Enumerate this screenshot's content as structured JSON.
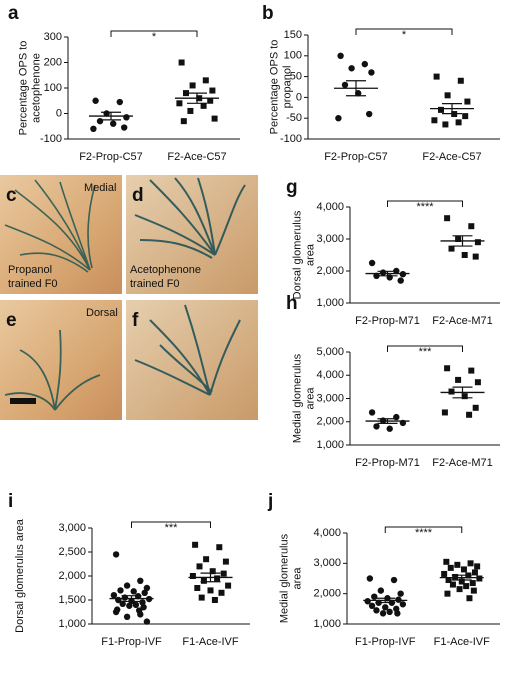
{
  "chart_data": [
    {
      "type": "dot",
      "letter": "a",
      "ylabel": [
        "Percentage OPS to",
        "acetophenone"
      ],
      "ylim": [
        -100,
        300
      ],
      "yticks": [
        -100,
        0,
        100,
        200,
        300
      ],
      "categories": [
        "F2-Prop-C57",
        "F2-Ace-C57"
      ],
      "markers": [
        "circle",
        "square"
      ],
      "annotation": "*",
      "groups": [
        {
          "values": [
            50,
            45,
            0,
            -15,
            -30,
            -40,
            -55,
            -60
          ],
          "mean": -10,
          "sem": 15
        },
        {
          "values": [
            200,
            130,
            110,
            90,
            80,
            60,
            50,
            40,
            30,
            10,
            -20,
            -30
          ],
          "mean": 60,
          "sem": 20
        }
      ]
    },
    {
      "type": "dot",
      "letter": "b",
      "ylabel": [
        "Percentage OPS to",
        "propanol"
      ],
      "ylim": [
        -100,
        150
      ],
      "yticks": [
        -100,
        -50,
        0,
        50,
        100,
        150
      ],
      "categories": [
        "F2-Prop-C57",
        "F2-Ace-C57"
      ],
      "markers": [
        "circle",
        "square"
      ],
      "annotation": "*",
      "groups": [
        {
          "values": [
            100,
            80,
            70,
            60,
            30,
            10,
            -40,
            -50
          ],
          "mean": 22,
          "sem": 18
        },
        {
          "values": [
            50,
            40,
            5,
            -10,
            -30,
            -40,
            -45,
            -55,
            -60,
            -65
          ],
          "mean": -27,
          "sem": 12
        }
      ]
    },
    {
      "type": "dot",
      "letter": "g",
      "ylabel": [
        "Dorsal glomerulus",
        "area"
      ],
      "ylim": [
        1000,
        4000
      ],
      "yticks": [
        {
          "value": 1000,
          "label": "1,000"
        },
        {
          "value": 2000,
          "label": "2,000"
        },
        {
          "value": 3000,
          "label": "3,000"
        },
        {
          "value": 4000,
          "label": "4,000"
        }
      ],
      "categories": [
        "F2-Prop-M71",
        "F2-Ace-M71"
      ],
      "markers": [
        "circle",
        "square"
      ],
      "annotation": "****",
      "groups": [
        {
          "values": [
            2250,
            2000,
            1950,
            1900,
            1850,
            1800,
            1700
          ],
          "mean": 1920,
          "sem": 70
        },
        {
          "values": [
            3650,
            3400,
            3000,
            2900,
            2700,
            2500,
            2450
          ],
          "mean": 2940,
          "sem": 160
        }
      ]
    },
    {
      "type": "dot",
      "letter": "h",
      "ylabel": [
        "Medial glomerulus",
        "area"
      ],
      "ylim": [
        1000,
        5000
      ],
      "yticks": [
        {
          "value": 1000,
          "label": "1,000"
        },
        {
          "value": 2000,
          "label": "2,000"
        },
        {
          "value": 3000,
          "label": "3,000"
        },
        {
          "value": 4000,
          "label": "4,000"
        },
        {
          "value": 5000,
          "label": "5,000"
        }
      ],
      "categories": [
        "F2-Prop-M71",
        "F2-Ace-M71"
      ],
      "markers": [
        "circle",
        "square"
      ],
      "annotation": "***",
      "groups": [
        {
          "values": [
            2400,
            2200,
            2050,
            1950,
            1800,
            1700
          ],
          "mean": 2030,
          "sem": 100
        },
        {
          "values": [
            4300,
            4200,
            3800,
            3700,
            3300,
            3100,
            2600,
            2400,
            2300
          ],
          "mean": 3260,
          "sem": 230
        }
      ]
    },
    {
      "type": "dot",
      "letter": "i",
      "ylabel": [
        "Dorsal glomerulus area"
      ],
      "ylim": [
        1000,
        3000
      ],
      "yticks": [
        {
          "value": 1000,
          "label": "1,000"
        },
        {
          "value": 1500,
          "label": "1,500"
        },
        {
          "value": 2000,
          "label": "2,000"
        },
        {
          "value": 2500,
          "label": "2,500"
        },
        {
          "value": 3000,
          "label": "3,000"
        }
      ],
      "categories": [
        "F1-Prop-IVF",
        "F1-Ace-IVF"
      ],
      "markers": [
        "circle",
        "square"
      ],
      "annotation": "***",
      "groups": [
        {
          "values": [
            2450,
            1900,
            1800,
            1750,
            1700,
            1680,
            1650,
            1600,
            1580,
            1550,
            1520,
            1500,
            1480,
            1450,
            1420,
            1400,
            1380,
            1350,
            1300,
            1280,
            1250,
            1200,
            1150,
            1050
          ],
          "mean": 1530,
          "sem": 60
        },
        {
          "values": [
            2650,
            2600,
            2350,
            2300,
            2200,
            2100,
            2050,
            2000,
            1950,
            1900,
            1800,
            1750,
            1700,
            1650,
            1550,
            1500
          ],
          "mean": 1970,
          "sem": 90
        }
      ]
    },
    {
      "type": "dot",
      "letter": "j",
      "ylabel": [
        "Medial glomerulus",
        "area"
      ],
      "ylim": [
        1000,
        4000
      ],
      "yticks": [
        {
          "value": 1000,
          "label": "1,000"
        },
        {
          "value": 2000,
          "label": "2,000"
        },
        {
          "value": 3000,
          "label": "3,000"
        },
        {
          "value": 4000,
          "label": "4,000"
        }
      ],
      "categories": [
        "F1-Prop-IVF",
        "F1-Ace-IVF"
      ],
      "markers": [
        "circle",
        "square"
      ],
      "annotation": "****",
      "groups": [
        {
          "values": [
            2500,
            2450,
            2100,
            2000,
            1900,
            1850,
            1800,
            1750,
            1700,
            1700,
            1650,
            1600,
            1550,
            1500,
            1450,
            1400,
            1350,
            1350
          ],
          "mean": 1780,
          "sem": 70
        },
        {
          "values": [
            3050,
            3000,
            2950,
            2900,
            2850,
            2800,
            2700,
            2650,
            2600,
            2550,
            2500,
            2450,
            2400,
            2350,
            2300,
            2250,
            2150,
            2100,
            2000,
            1850
          ],
          "mean": 2530,
          "sem": 80
        }
      ]
    }
  ],
  "photos": [
    {
      "letter": "c",
      "top_label": "Medial",
      "bottom_label": [
        "Propanol",
        "trained F0"
      ]
    },
    {
      "letter": "d",
      "bottom_label": [
        "Acetophenone",
        "trained F0"
      ]
    },
    {
      "letter": "e",
      "top_label": "Dorsal"
    },
    {
      "letter": "f"
    }
  ]
}
